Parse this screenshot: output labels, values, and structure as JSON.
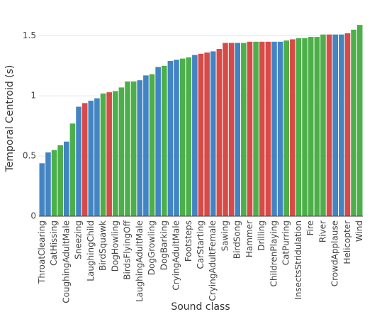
{
  "chart_data": {
    "type": "bar",
    "x_label": "Sound class",
    "y_label": "Temporal Centroid (s)",
    "categories": [
      "ThroatClearing",
      null,
      "CatHissing",
      null,
      "CoughingAdultMale",
      null,
      "Sneezing",
      null,
      "LaughingChild",
      null,
      "BirdSquawk",
      null,
      "DogHowling",
      null,
      "BirdsFlyingOff",
      null,
      "LaughingAdultMale",
      null,
      "DogGrowling",
      null,
      "DogBarking",
      null,
      "CryingAdultMale",
      null,
      "Footsteps",
      null,
      "CarStarting",
      null,
      "CryingAdultFemale",
      null,
      "Sawing",
      null,
      "BirdSong",
      null,
      "Hammer",
      null,
      "Drilling",
      null,
      "ChildrenPlaying",
      null,
      "CatPurring",
      null,
      "InsectsStridulation",
      null,
      "Fire",
      null,
      "River",
      null,
      "CrowdApplause",
      null,
      "Helicopter",
      null,
      "Wind"
    ],
    "values": [
      0.44,
      0.53,
      0.55,
      0.59,
      0.62,
      0.77,
      0.91,
      0.94,
      0.96,
      0.98,
      1.02,
      1.03,
      1.04,
      1.07,
      1.12,
      1.12,
      1.13,
      1.17,
      1.18,
      1.24,
      1.25,
      1.29,
      1.3,
      1.31,
      1.32,
      1.34,
      1.35,
      1.36,
      1.37,
      1.39,
      1.44,
      1.44,
      1.44,
      1.44,
      1.45,
      1.45,
      1.45,
      1.45,
      1.45,
      1.45,
      1.46,
      1.47,
      1.48,
      1.48,
      1.49,
      1.49,
      1.51,
      1.51,
      1.51,
      1.51,
      1.52,
      1.55,
      1.59
    ],
    "colors": [
      "#4384c3",
      "#4384c3",
      "#4daf4a",
      "#4daf4a",
      "#4384c3",
      "#4daf4a",
      "#4384c3",
      "#d84a47",
      "#4384c3",
      "#4384c3",
      "#4daf4a",
      "#d84a47",
      "#4daf4a",
      "#4daf4a",
      "#4daf4a",
      "#4daf4a",
      "#4384c3",
      "#4384c3",
      "#4daf4a",
      "#4384c3",
      "#4daf4a",
      "#4384c3",
      "#4384c3",
      "#4daf4a",
      "#4daf4a",
      "#4384c3",
      "#d84a47",
      "#d84a47",
      "#4384c3",
      "#d84a47",
      "#d84a47",
      "#d84a47",
      "#4384c3",
      "#4daf4a",
      "#d84a47",
      "#4daf4a",
      "#d84a47",
      "#d84a47",
      "#4384c3",
      "#4384c3",
      "#4daf4a",
      "#d84a47",
      "#4daf4a",
      "#4daf4a",
      "#4daf4a",
      "#4daf4a",
      "#4daf4a",
      "#d84a47",
      "#4384c3",
      "#4384c3",
      "#d84a47",
      "#4daf4a",
      "#4daf4a"
    ],
    "ylim": [
      0,
      1.62
    ],
    "yticks": [
      0,
      0.5,
      1,
      1.5
    ],
    "grid": true
  }
}
